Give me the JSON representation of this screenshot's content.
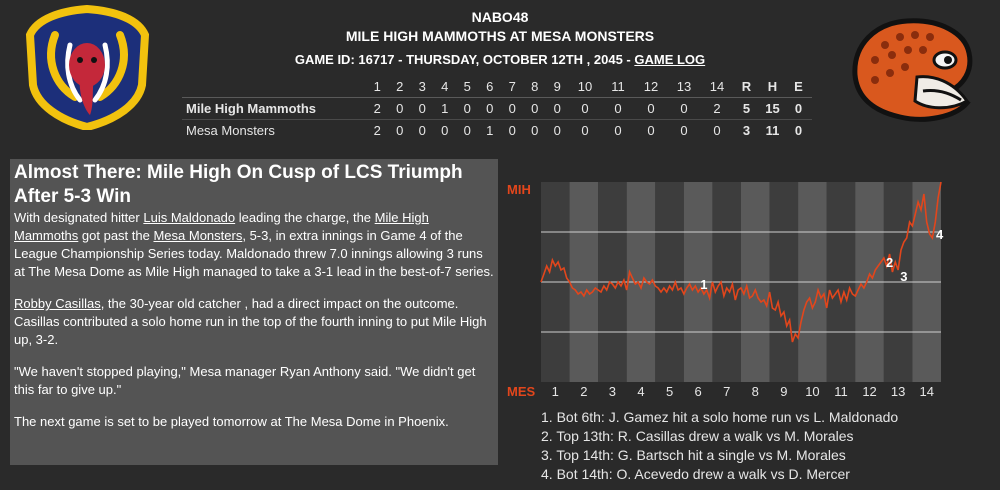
{
  "header": {
    "league": "NABO48",
    "matchup": "MILE HIGH MAMMOTHS AT MESA MONSTERS",
    "game_info": "GAME ID: 16717 - THURSDAY, OCTOBER 12TH , 2045 - ",
    "game_log_link": "GAME LOG"
  },
  "logos": {
    "left": "mile-high-mammoths-logo",
    "right": "mesa-monsters-logo"
  },
  "boxscore": {
    "innings": [
      "1",
      "2",
      "3",
      "4",
      "5",
      "6",
      "7",
      "8",
      "9",
      "10",
      "11",
      "12",
      "13",
      "14"
    ],
    "totals_headers": [
      "R",
      "H",
      "E"
    ],
    "teams": [
      {
        "name": "Mile High Mammoths",
        "innings": [
          "2",
          "0",
          "0",
          "1",
          "0",
          "0",
          "0",
          "0",
          "0",
          "0",
          "0",
          "0",
          "0",
          "2"
        ],
        "r": "5",
        "h": "15",
        "e": "0"
      },
      {
        "name": "Mesa Monsters",
        "innings": [
          "2",
          "0",
          "0",
          "0",
          "0",
          "1",
          "0",
          "0",
          "0",
          "0",
          "0",
          "0",
          "0",
          "0"
        ],
        "r": "3",
        "h": "11",
        "e": "0"
      }
    ]
  },
  "story": {
    "headline": "Almost There: Mile High On Cusp of LCS Triumph After 5-3 Win",
    "p1": {
      "t1": "With designated hitter ",
      "link1": "Luis Maldonado",
      "t2": " leading the charge, the ",
      "link2": "Mile High Mammoths",
      "t3": " got past the ",
      "link3": "Mesa Monsters",
      "t4": ", 5-3, in extra innings in Game 4 of the League Championship Series today. Maldonado threw 7.0 innings allowing 3 runs at The Mesa Dome as Mile High managed to take a 3-1 lead in the best-of-7 series."
    },
    "p2": {
      "link1": "Robby Casillas",
      "t1": ", the 30-year old catcher , had a direct impact on the outcome. Casillas contributed a solo home run in the top of the fourth inning to put Mile High up, 3-2."
    },
    "p3": "\"We haven't stopped playing,\" Mesa manager Ryan Anthony said. \"We didn't get this far to give up.\"",
    "p4": "The next game is set to be played tomorrow at The Mesa Dome in Phoenix."
  },
  "chart_data": {
    "type": "line",
    "title": "",
    "top_label": "MIH",
    "bottom_label": "MES",
    "xlabel": "",
    "ylabel": "",
    "x_tick_labels": [
      "1",
      "2",
      "3",
      "4",
      "5",
      "6",
      "7",
      "8",
      "9",
      "10",
      "11",
      "12",
      "13",
      "14"
    ],
    "ylim": [
      0,
      1
    ],
    "series": [
      {
        "x": [
          0,
          0.1,
          0.2,
          0.3,
          0.4,
          0.5,
          0.6,
          0.7,
          0.8,
          0.9,
          1.0,
          1.1,
          1.2,
          1.3,
          1.4,
          1.5,
          1.6,
          1.7,
          1.8,
          1.9,
          2.0,
          2.1,
          2.2,
          2.3,
          2.4,
          2.5,
          2.6,
          2.7,
          2.8,
          2.9,
          3.0,
          3.1,
          3.2,
          3.3,
          3.4,
          3.5,
          3.6,
          3.7,
          3.8,
          3.9,
          4.0,
          4.1,
          4.2,
          4.3,
          4.4,
          4.5,
          4.6,
          4.7,
          4.8,
          4.9,
          5.0,
          5.1,
          5.2,
          5.3,
          5.4,
          5.5,
          5.6,
          5.7,
          5.8,
          5.9,
          6.0,
          6.1,
          6.2,
          6.3,
          6.4,
          6.5,
          6.6,
          6.7,
          6.8,
          6.9,
          7.0,
          7.1,
          7.2,
          7.3,
          7.4,
          7.5,
          7.6,
          7.7,
          7.8,
          7.9,
          8.0,
          8.1,
          8.2,
          8.3,
          8.4,
          8.5,
          8.6,
          8.7,
          8.8,
          8.9,
          9.0,
          9.1,
          9.2,
          9.3,
          9.4,
          9.5,
          9.6,
          9.7,
          9.8,
          9.9,
          10.0,
          10.1,
          10.2,
          10.3,
          10.4,
          10.5,
          10.6,
          10.7,
          10.8,
          10.9,
          11.0,
          11.1,
          11.2,
          11.3,
          11.4,
          11.5,
          11.6,
          11.7,
          11.8,
          11.9,
          12.0,
          12.1,
          12.2,
          12.3,
          12.4,
          12.5,
          12.6,
          12.7,
          12.8,
          12.9,
          13.0,
          13.1,
          13.2,
          13.3,
          13.4,
          13.5,
          13.6,
          13.7,
          13.8,
          13.9,
          14.0
        ],
        "values": [
          0.5,
          0.54,
          0.58,
          0.55,
          0.61,
          0.58,
          0.6,
          0.56,
          0.57,
          0.52,
          0.5,
          0.47,
          0.46,
          0.44,
          0.45,
          0.43,
          0.46,
          0.44,
          0.45,
          0.47,
          0.46,
          0.45,
          0.48,
          0.46,
          0.5,
          0.49,
          0.47,
          0.5,
          0.48,
          0.51,
          0.46,
          0.55,
          0.52,
          0.49,
          0.5,
          0.47,
          0.52,
          0.5,
          0.49,
          0.51,
          0.48,
          0.47,
          0.45,
          0.47,
          0.45,
          0.48,
          0.46,
          0.5,
          0.46,
          0.47,
          0.44,
          0.47,
          0.49,
          0.46,
          0.48,
          0.45,
          0.47,
          0.44,
          0.46,
          0.42,
          0.5,
          0.45,
          0.48,
          0.5,
          0.43,
          0.47,
          0.45,
          0.49,
          0.41,
          0.46,
          0.47,
          0.44,
          0.48,
          0.42,
          0.43,
          0.46,
          0.42,
          0.4,
          0.41,
          0.38,
          0.45,
          0.37,
          0.36,
          0.4,
          0.33,
          0.35,
          0.28,
          0.31,
          0.2,
          0.24,
          0.22,
          0.3,
          0.36,
          0.4,
          0.42,
          0.37,
          0.4,
          0.46,
          0.42,
          0.44,
          0.37,
          0.46,
          0.42,
          0.44,
          0.46,
          0.4,
          0.45,
          0.41,
          0.47,
          0.44,
          0.43,
          0.46,
          0.49,
          0.47,
          0.5,
          0.54,
          0.52,
          0.56,
          0.58,
          0.6,
          0.62,
          0.58,
          0.64,
          0.55,
          0.6,
          0.56,
          0.66,
          0.7,
          0.72,
          0.8,
          0.78,
          0.84,
          0.9,
          0.86,
          0.94,
          0.8,
          0.74,
          0.72,
          0.8,
          0.92,
          1.0
        ],
        "color": "#e2461c"
      }
    ],
    "annotations": [
      {
        "label": "1",
        "x": 5.7,
        "y": 0.49
      },
      {
        "label": "2",
        "x": 12.2,
        "y": 0.6
      },
      {
        "label": "3",
        "x": 12.7,
        "y": 0.53
      },
      {
        "label": "4",
        "x": 13.95,
        "y": 0.74
      }
    ],
    "colors": {
      "line": "#e2461c",
      "top_label": "#e2461c",
      "bottom_label": "#e2461c",
      "band_dark": "#3d3d3d",
      "band_light": "#5a5a5a"
    }
  },
  "events": [
    "1. Bot 6th: J. Gamez hit a solo home run vs L. Maldonado",
    "2. Top 13th: R. Casillas drew a walk vs M. Morales",
    "3. Top 14th: G. Bartsch hit a single vs M. Morales",
    "4. Bot 14th: O. Acevedo drew a walk vs D. Mercer"
  ]
}
